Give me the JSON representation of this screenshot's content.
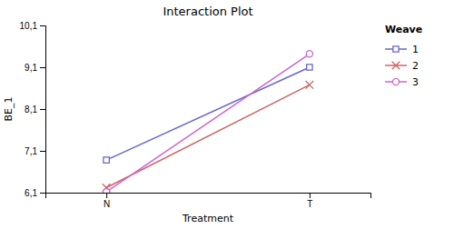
{
  "chart_data": {
    "type": "line",
    "title": "Interaction Plot",
    "x_label": "Treatment",
    "y_label": "BE_1",
    "categories": [
      "N",
      "T"
    ],
    "series": [
      {
        "name": "1",
        "color": "#6666cc",
        "marker": "square",
        "values": [
          6.88,
          9.1
        ]
      },
      {
        "name": "2",
        "color": "#cc6666",
        "marker": "x",
        "values": [
          6.22,
          8.68
        ]
      },
      {
        "name": "3",
        "color": "#cc66cc",
        "marker": "circle",
        "values": [
          6.12,
          9.42
        ]
      }
    ],
    "ylim": [
      6.1,
      10.1
    ],
    "yticks": [
      {
        "value": 6.1,
        "label": "6,1"
      },
      {
        "value": 7.1,
        "label": "7,1"
      },
      {
        "value": 8.1,
        "label": "8,1"
      },
      {
        "value": 9.1,
        "label": "9,1"
      },
      {
        "value": 10.1,
        "label": "10,1"
      }
    ],
    "legend_title": "Weave",
    "legend": "right",
    "grid": false
  }
}
